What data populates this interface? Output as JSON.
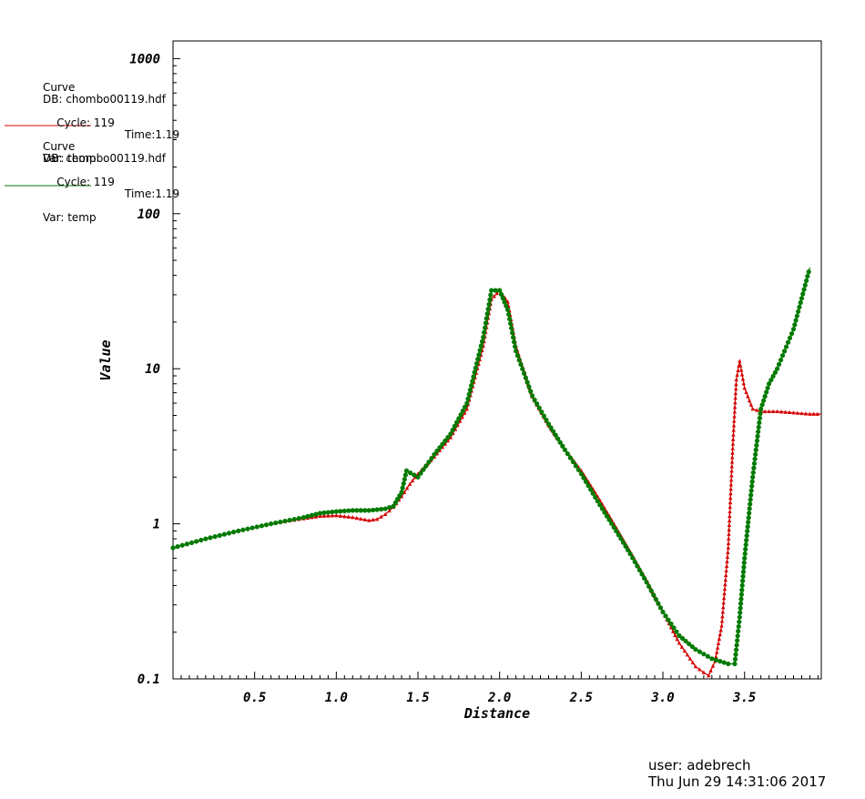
{
  "legend": [
    {
      "label": "Curve",
      "db": "DB: chombo00119.hdf",
      "cycle": "Cycle: 119",
      "time": "Time:1.19",
      "var": "Var: temp",
      "color": "#d40000"
    },
    {
      "label": "Curve",
      "db": "DB: chombo00119.hdf",
      "cycle": "Cycle: 119",
      "time": "Time:1.19",
      "var": "Var: temp",
      "color": "#007a00"
    }
  ],
  "footer": {
    "user": "user: adebrech",
    "date": "Thu Jun 29 14:31:06 2017"
  },
  "chart_data": {
    "type": "line",
    "xlabel": "Distance",
    "ylabel": "Value",
    "y_scale": "log",
    "xlim": [
      0.0,
      3.97
    ],
    "ylim": [
      0.1,
      1300
    ],
    "x_ticks": [
      0.5,
      1.0,
      1.5,
      2.0,
      2.5,
      3.0,
      3.5
    ],
    "x_tick_labels": [
      "0.5",
      "1.0",
      "1.5",
      "2.0",
      "2.5",
      "3.0",
      "3.5"
    ],
    "y_ticks": [
      0.1,
      1,
      10,
      100,
      1000
    ],
    "y_tick_labels": [
      "0.1",
      "1",
      "10",
      "100",
      "1000"
    ],
    "grid": false,
    "series": [
      {
        "color": "#d40000",
        "marker": "triangle",
        "x": [
          0.0,
          0.2,
          0.4,
          0.6,
          0.8,
          0.9,
          1.0,
          1.1,
          1.2,
          1.25,
          1.3,
          1.35,
          1.4,
          1.45,
          1.5,
          1.6,
          1.7,
          1.8,
          1.9,
          1.95,
          2.0,
          2.05,
          2.1,
          2.2,
          2.3,
          2.4,
          2.5,
          2.6,
          2.7,
          2.8,
          2.9,
          3.0,
          3.1,
          3.2,
          3.25,
          3.28,
          3.32,
          3.36,
          3.4,
          3.43,
          3.45,
          3.47,
          3.5,
          3.55,
          3.6,
          3.7,
          3.8,
          3.9,
          3.97
        ],
        "y": [
          0.7,
          0.8,
          0.9,
          1.0,
          1.08,
          1.12,
          1.13,
          1.1,
          1.05,
          1.07,
          1.15,
          1.28,
          1.5,
          1.8,
          2.1,
          2.7,
          3.6,
          5.5,
          14,
          28,
          32,
          27,
          14,
          6.6,
          4.3,
          3.0,
          2.2,
          1.5,
          1.0,
          0.66,
          0.43,
          0.27,
          0.17,
          0.12,
          0.11,
          0.105,
          0.13,
          0.22,
          0.7,
          3.5,
          8.5,
          11.2,
          7.5,
          5.5,
          5.3,
          5.3,
          5.2,
          5.1,
          5.1
        ]
      },
      {
        "color": "#007a00",
        "marker": "circle",
        "x": [
          0.0,
          0.2,
          0.4,
          0.6,
          0.8,
          0.9,
          1.0,
          1.1,
          1.2,
          1.3,
          1.35,
          1.4,
          1.43,
          1.5,
          1.6,
          1.7,
          1.8,
          1.9,
          1.95,
          2.0,
          2.05,
          2.1,
          2.2,
          2.3,
          2.4,
          2.5,
          2.6,
          2.7,
          2.8,
          2.9,
          3.0,
          3.1,
          3.2,
          3.3,
          3.4,
          3.44,
          3.47,
          3.5,
          3.55,
          3.6,
          3.65,
          3.7,
          3.8,
          3.9
        ],
        "y": [
          0.7,
          0.8,
          0.9,
          1.0,
          1.1,
          1.17,
          1.2,
          1.22,
          1.22,
          1.25,
          1.3,
          1.6,
          2.2,
          2.0,
          2.8,
          3.8,
          6.0,
          16,
          32,
          32,
          24,
          13,
          6.7,
          4.4,
          3.0,
          2.1,
          1.4,
          0.95,
          0.64,
          0.42,
          0.27,
          0.19,
          0.155,
          0.135,
          0.125,
          0.125,
          0.25,
          0.6,
          2.0,
          5.5,
          8.0,
          10.0,
          18,
          45
        ]
      }
    ]
  }
}
